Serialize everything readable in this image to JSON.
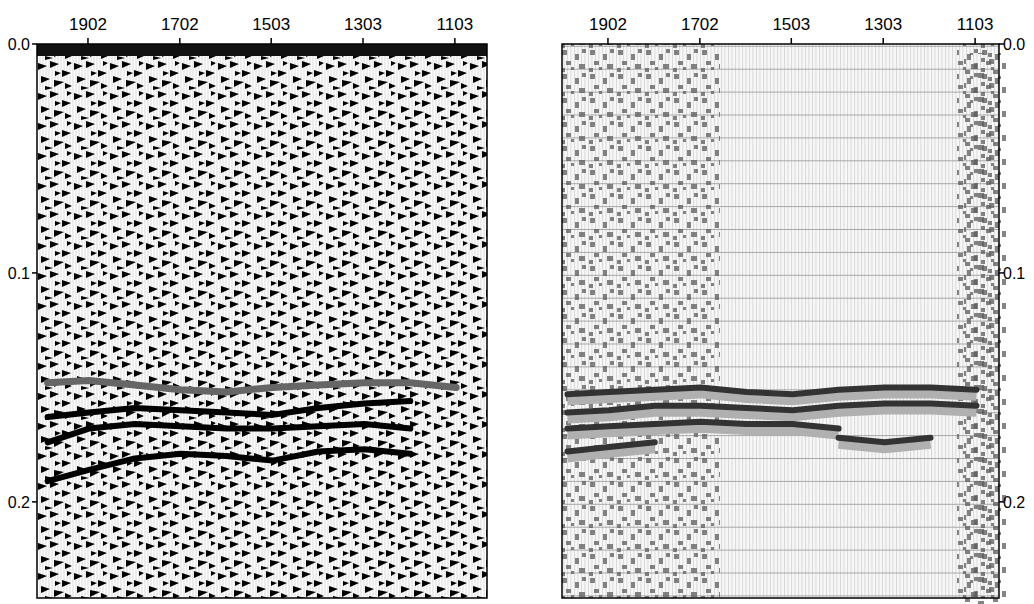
{
  "chart_data": [
    {
      "type": "line",
      "x": [
        1990,
        1900,
        1800,
        1700,
        1600,
        1500,
        1400,
        1300,
        1200,
        1100
      ],
      "xlim": [
        2013,
        1033
      ],
      "xticks": [
        1902,
        1702,
        1503,
        1303,
        1103
      ],
      "ylim": [
        0,
        0.242
      ],
      "yticks": [
        {
          "value": 0,
          "label": "0.0"
        },
        0.1,
        0.2
      ],
      "series": [
        {
          "color": "#666666",
          "line_style": "solid",
          "values": [
            0.148,
            0.147,
            0.149,
            0.151,
            0.152,
            0.15,
            0.149,
            0.148,
            0.148,
            0.15
          ]
        },
        {
          "color": "#000000",
          "line_style": "solid",
          "values": [
            0.163,
            0.161,
            0.159,
            0.16,
            0.161,
            0.162,
            0.159,
            0.157,
            0.156,
            null
          ]
        },
        {
          "color": "#000000",
          "line_style": "solid",
          "values": [
            0.174,
            0.168,
            0.166,
            0.167,
            0.168,
            0.168,
            0.167,
            0.166,
            0.168,
            null
          ]
        },
        {
          "color": "#000000",
          "line_style": "solid",
          "values": [
            0.191,
            0.186,
            0.181,
            0.179,
            0.18,
            0.182,
            0.178,
            0.177,
            0.179,
            null
          ]
        }
      ]
    },
    {
      "type": "line",
      "x": [
        1990,
        1900,
        1800,
        1700,
        1600,
        1500,
        1400,
        1300,
        1200,
        1100
      ],
      "xlim": [
        2002,
        1051
      ],
      "xticks": [
        1902,
        1702,
        1503,
        1303,
        1103
      ],
      "ylim": [
        0,
        0.242
      ],
      "yticks": [
        {
          "value": 0,
          "label": "0.0"
        },
        0.1,
        0.2
      ],
      "series": [
        {
          "color": "#333333",
          "line_style": "solid",
          "values": [
            0.153,
            0.152,
            0.151,
            0.15,
            0.152,
            0.153,
            0.151,
            0.15,
            0.15,
            0.151
          ]
        },
        {
          "color": "#333333",
          "line_style": "solid",
          "values": [
            0.161,
            0.16,
            0.158,
            0.158,
            0.159,
            0.16,
            0.158,
            0.157,
            0.157,
            0.158
          ]
        },
        {
          "color": "#333333",
          "line_style": "solid",
          "values": [
            0.168,
            0.167,
            0.166,
            0.165,
            0.166,
            0.166,
            0.168,
            null,
            null,
            null
          ]
        },
        {
          "color": "#333333",
          "line_style": "solid",
          "values": [
            0.178,
            0.176,
            0.174,
            null,
            null,
            null,
            0.172,
            0.174,
            0.172,
            null
          ]
        }
      ]
    }
  ]
}
